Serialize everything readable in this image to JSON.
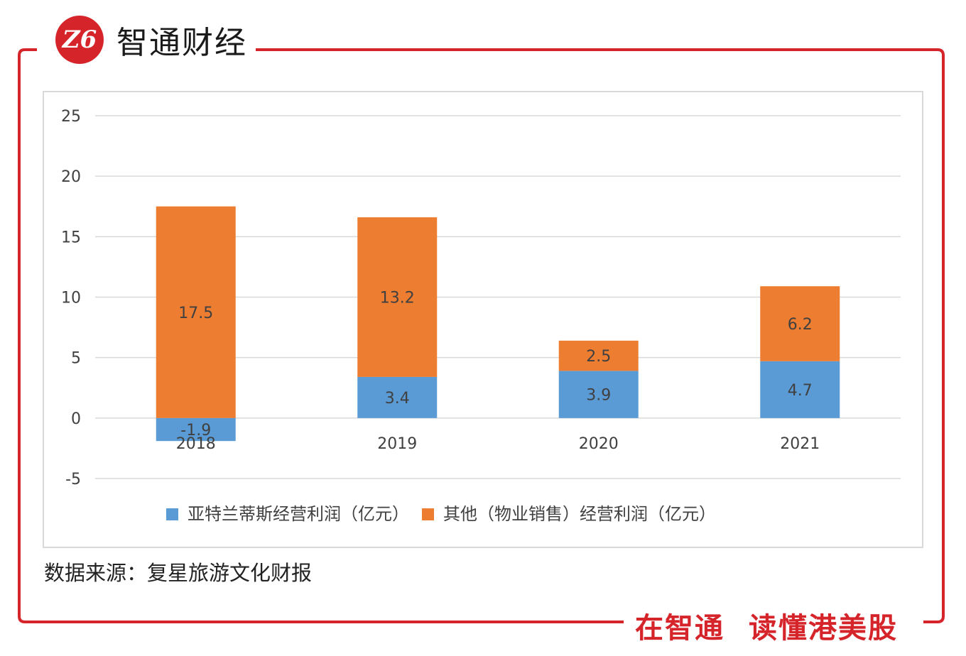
{
  "brand": {
    "logo_text": "Z6",
    "name": "智通财经"
  },
  "slogan": {
    "part1": "在智通",
    "part2": "读懂港美股"
  },
  "source": "数据来源：复星旅游文化财报",
  "colors": {
    "frame": "#d5242a",
    "series_blue": "#5b9bd5",
    "series_orange": "#ed7d31",
    "grid": "#d9d9d9"
  },
  "chart_data": {
    "type": "bar",
    "stacked": true,
    "categories": [
      "2018",
      "2019",
      "2020",
      "2021"
    ],
    "series": [
      {
        "name": "亚特兰蒂斯经营利润（亿元）",
        "values": [
          -1.9,
          3.4,
          3.9,
          4.7
        ],
        "labels": [
          "-1.9",
          "3.4",
          "3.9",
          "4.7"
        ],
        "color": "#5b9bd5"
      },
      {
        "name": "其他（物业销售）经营利润（亿元）",
        "values": [
          17.5,
          13.2,
          2.5,
          6.2
        ],
        "labels": [
          "17.5",
          "13.2",
          "2.5",
          "6.2"
        ],
        "color": "#ed7d31"
      }
    ],
    "yticks": [
      "25",
      "20",
      "15",
      "10",
      "5",
      "0",
      "-5"
    ],
    "ytick_values": [
      25,
      20,
      15,
      10,
      5,
      0,
      -5
    ],
    "ylim": [
      -5,
      25
    ],
    "grid": true,
    "legend_position": "bottom"
  }
}
